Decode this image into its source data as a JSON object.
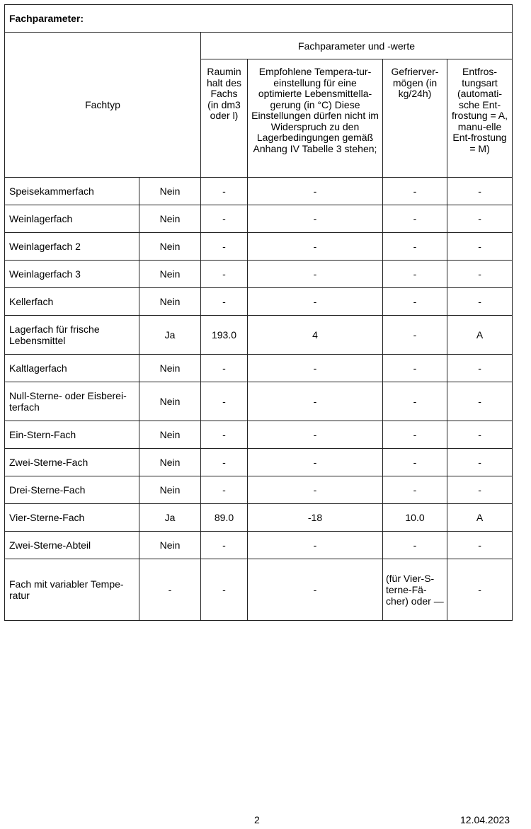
{
  "title": "Fachparameter:",
  "header": {
    "fachtyp": "Fachtyp",
    "group": "Fachparameter und -werte",
    "columns": [
      "Raumin halt des Fachs (in dm3 oder l)",
      "Empfohlene Tempera-tur-einstellung für eine optimierte Lebensmittella-gerung (in °C) Diese Einstellungen dürfen nicht im Widerspruch zu den Lagerbedingungen gemäß Anhang IV Tabelle 3 stehen;",
      "Gefrierver-mögen (in kg/24h)",
      "Entfros-tungsart (automati-sche Ent-frostung = A, manu-elle Ent-frostung = M)"
    ]
  },
  "rows": [
    [
      "Speisekammerfach",
      "Nein",
      "-",
      "-",
      "-",
      "-"
    ],
    [
      "Weinlagerfach",
      "Nein",
      "-",
      "-",
      "-",
      "-"
    ],
    [
      "Weinlagerfach 2",
      "Nein",
      "-",
      "-",
      "-",
      "-"
    ],
    [
      "Weinlagerfach 3",
      "Nein",
      "-",
      "-",
      "-",
      "-"
    ],
    [
      "Kellerfach",
      "Nein",
      "-",
      "-",
      "-",
      "-"
    ],
    [
      "Lagerfach für frische Lebensmittel",
      "Ja",
      "193.0",
      "4",
      "-",
      "A"
    ],
    [
      "Kaltlagerfach",
      "Nein",
      "-",
      "-",
      "-",
      "-"
    ],
    [
      "Null-Sterne- oder Eisberei-terfach",
      "Nein",
      "-",
      "-",
      "-",
      "-"
    ],
    [
      "Ein-Stern-Fach",
      "Nein",
      "-",
      "-",
      "-",
      "-"
    ],
    [
      "Zwei-Sterne-Fach",
      "Nein",
      "-",
      "-",
      "-",
      "-"
    ],
    [
      "Drei-Sterne-Fach",
      "Nein",
      "-",
      "-",
      "-",
      "-"
    ],
    [
      "Vier-Sterne-Fach",
      "Ja",
      "89.0",
      "-18",
      "10.0",
      "A"
    ],
    [
      "Zwei-Sterne-Abteil",
      "Nein",
      "-",
      "-",
      "-",
      "-"
    ],
    [
      "Fach mit variabler Tempe-ratur",
      "-",
      "-",
      "-",
      "(für Vier-S-terne-Fä-cher) oder —",
      "-"
    ]
  ],
  "footer": {
    "page": "2",
    "date": "12.04.2023"
  }
}
